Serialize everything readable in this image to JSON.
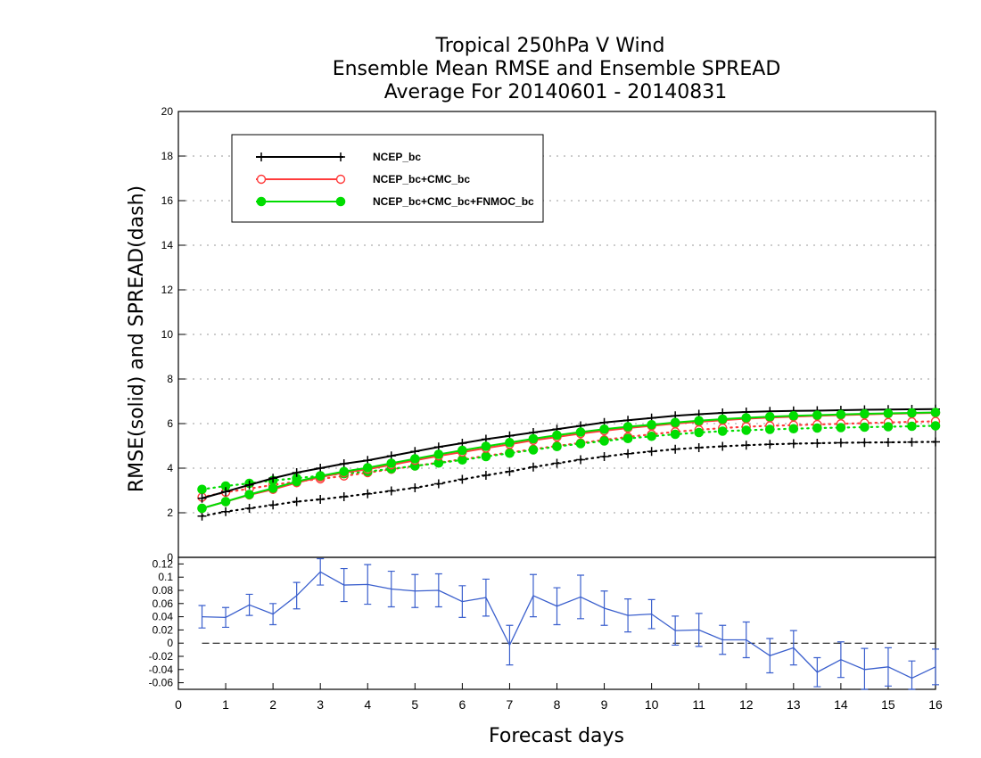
{
  "title_lines": [
    "Tropical 250hPa V Wind",
    "Ensemble Mean RMSE and Ensemble SPREAD",
    "Average For 20140601 - 20140831"
  ],
  "chart_data": [
    {
      "type": "line",
      "ylabel": "RMSE(solid) and SPREAD(dash)",
      "xlim": [
        0,
        16
      ],
      "ylim": [
        0,
        20
      ],
      "y_ticks": [
        0,
        2,
        4,
        6,
        8,
        10,
        12,
        14,
        16,
        18,
        20
      ],
      "grid": true,
      "legend_position": "top-left",
      "x": [
        0.5,
        1.0,
        1.5,
        2.0,
        2.5,
        3.0,
        3.5,
        4.0,
        4.5,
        5.0,
        5.5,
        6.0,
        6.5,
        7.0,
        7.5,
        8.0,
        8.5,
        9.0,
        9.5,
        10.0,
        10.5,
        11.0,
        11.5,
        12.0,
        12.5,
        13.0,
        13.5,
        14.0,
        14.5,
        15.0,
        15.5,
        16.0
      ],
      "series": [
        {
          "name": "NCEP_bc",
          "color": "#000000",
          "marker": "plus",
          "style": "solid",
          "values": [
            2.65,
            2.95,
            3.25,
            3.55,
            3.8,
            4.0,
            4.2,
            4.35,
            4.55,
            4.75,
            4.95,
            5.12,
            5.3,
            5.45,
            5.6,
            5.75,
            5.9,
            6.05,
            6.15,
            6.25,
            6.35,
            6.42,
            6.48,
            6.52,
            6.55,
            6.57,
            6.58,
            6.6,
            6.62,
            6.63,
            6.64,
            6.65
          ]
        },
        {
          "name": "NCEP_bc+CMC_bc",
          "color": "#ff3b3b",
          "marker": "circle-open",
          "style": "solid",
          "values": [
            2.2,
            2.5,
            2.8,
            3.05,
            3.35,
            3.6,
            3.8,
            3.95,
            4.15,
            4.35,
            4.55,
            4.72,
            4.9,
            5.07,
            5.25,
            5.4,
            5.55,
            5.68,
            5.8,
            5.9,
            6.0,
            6.08,
            6.15,
            6.22,
            6.27,
            6.31,
            6.35,
            6.38,
            6.41,
            6.44,
            6.46,
            6.48
          ]
        },
        {
          "name": "NCEP_bc+CMC_bc+FNMOC_bc",
          "color": "#00dd00",
          "marker": "circle-filled",
          "style": "solid",
          "values": [
            2.2,
            2.5,
            2.82,
            3.1,
            3.4,
            3.65,
            3.85,
            4.02,
            4.22,
            4.42,
            4.62,
            4.8,
            4.98,
            5.15,
            5.32,
            5.48,
            5.62,
            5.75,
            5.86,
            5.95,
            6.05,
            6.13,
            6.2,
            6.26,
            6.31,
            6.35,
            6.38,
            6.41,
            6.44,
            6.46,
            6.48,
            6.5
          ]
        },
        {
          "name": "",
          "color": "#000000",
          "marker": "plus",
          "style": "dotted",
          "values": [
            1.85,
            2.05,
            2.2,
            2.35,
            2.5,
            2.6,
            2.72,
            2.85,
            2.98,
            3.12,
            3.3,
            3.5,
            3.68,
            3.85,
            4.05,
            4.22,
            4.38,
            4.52,
            4.65,
            4.75,
            4.85,
            4.92,
            4.98,
            5.03,
            5.07,
            5.1,
            5.12,
            5.14,
            5.15,
            5.16,
            5.17,
            5.18
          ]
        },
        {
          "name": "",
          "color": "#ff3b3b",
          "marker": "circle-open",
          "style": "dotted",
          "values": [
            2.7,
            2.92,
            3.08,
            3.25,
            3.4,
            3.52,
            3.65,
            3.8,
            3.95,
            4.1,
            4.25,
            4.4,
            4.55,
            4.7,
            4.85,
            5.0,
            5.13,
            5.27,
            5.4,
            5.52,
            5.63,
            5.72,
            5.8,
            5.86,
            5.9,
            5.93,
            5.96,
            5.99,
            6.02,
            6.05,
            6.08,
            6.1
          ]
        },
        {
          "name": "",
          "color": "#00dd00",
          "marker": "circle-filled",
          "style": "dotted",
          "values": [
            3.05,
            3.2,
            3.32,
            3.45,
            3.55,
            3.66,
            3.75,
            3.85,
            3.97,
            4.1,
            4.23,
            4.37,
            4.52,
            4.67,
            4.82,
            4.97,
            5.1,
            5.22,
            5.33,
            5.43,
            5.52,
            5.6,
            5.66,
            5.7,
            5.74,
            5.77,
            5.8,
            5.82,
            5.84,
            5.86,
            5.88,
            5.9
          ]
        }
      ]
    },
    {
      "type": "line",
      "xlabel": "Forecast days",
      "xlim": [
        0,
        16
      ],
      "ylim": [
        -0.07,
        0.13
      ],
      "x_ticks": [
        0,
        1,
        2,
        3,
        4,
        5,
        6,
        7,
        8,
        9,
        10,
        11,
        12,
        13,
        14,
        15,
        16
      ],
      "y_ticks": [
        -0.06,
        -0.04,
        -0.02,
        0,
        0.02,
        0.04,
        0.06,
        0.08,
        0.1,
        0.12
      ],
      "reference_line": 0,
      "x": [
        0.5,
        1.0,
        1.5,
        2.0,
        2.5,
        3.0,
        3.5,
        4.0,
        4.5,
        5.0,
        5.5,
        6.0,
        6.5,
        7.0,
        7.5,
        8.0,
        8.5,
        9.0,
        9.5,
        10.0,
        10.5,
        11.0,
        11.5,
        12.0,
        12.5,
        13.0,
        13.5,
        14.0,
        14.5,
        15.0,
        15.5,
        16.0
      ],
      "series": [
        {
          "name": "",
          "color": "#3a5fcd",
          "values": [
            0.04,
            0.039,
            0.058,
            0.044,
            0.072,
            0.108,
            0.088,
            0.089,
            0.082,
            0.079,
            0.08,
            0.063,
            0.069,
            -0.003,
            0.072,
            0.056,
            0.07,
            0.053,
            0.042,
            0.044,
            0.019,
            0.02,
            0.005,
            0.005,
            -0.019,
            -0.007,
            -0.044,
            -0.025,
            -0.04,
            -0.036,
            -0.053,
            -0.036
          ],
          "error": [
            0.017,
            0.015,
            0.016,
            0.016,
            0.02,
            0.02,
            0.025,
            0.03,
            0.027,
            0.025,
            0.025,
            0.024,
            0.028,
            0.03,
            0.032,
            0.028,
            0.033,
            0.026,
            0.025,
            0.022,
            0.022,
            0.025,
            0.022,
            0.027,
            0.026,
            0.026,
            0.022,
            0.027,
            0.032,
            0.029,
            0.026,
            0.027
          ]
        }
      ]
    }
  ]
}
